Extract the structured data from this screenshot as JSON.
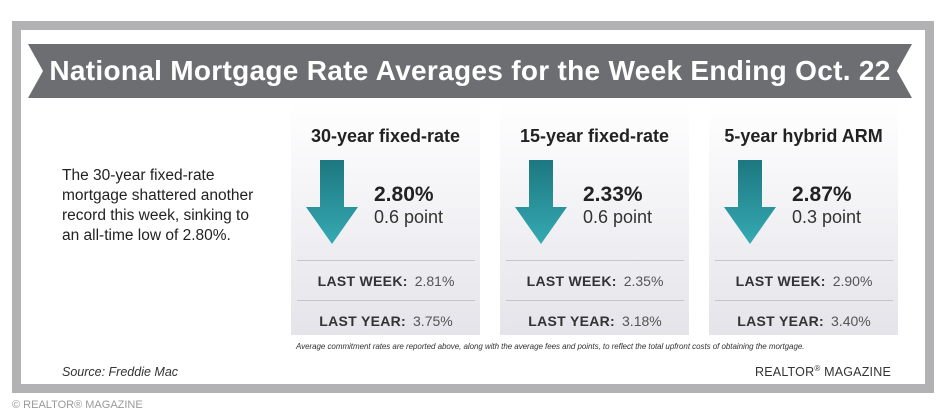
{
  "header": {
    "title": "National Mortgage Rate Averages for the Week Ending Oct. 22"
  },
  "summary": {
    "text": "The 30-year fixed-rate mortgage shattered another record this week, sinking to an all-time low of 2.80%."
  },
  "cards": [
    {
      "title": "30-year fixed-rate",
      "rate": "2.80%",
      "points": "0.6 point",
      "last_week_label": "LAST WEEK:",
      "last_week_value": "2.81%",
      "last_year_label": "LAST YEAR:",
      "last_year_value": "3.75%"
    },
    {
      "title": "15-year fixed-rate",
      "rate": "2.33%",
      "points": "0.6 point",
      "last_week_label": "LAST WEEK:",
      "last_week_value": "2.35%",
      "last_year_label": "LAST YEAR:",
      "last_year_value": "3.18%"
    },
    {
      "title": "5-year hybrid ARM",
      "rate": "2.87%",
      "points": "0.3 point",
      "last_week_label": "LAST WEEK:",
      "last_week_value": "2.90%",
      "last_year_label": "LAST YEAR:",
      "last_year_value": "3.40%"
    }
  ],
  "footnote": "Average commitment rates are reported above, along with the average fees and points, to reflect the total upfront costs of obtaining the mortgage.",
  "source": "Source: Freddie Mac",
  "brand": {
    "name": "REALTOR",
    "reg": "®",
    "suffix": " MAGAZINE"
  },
  "copyright": "© REALTOR® MAGAZINE",
  "colors": {
    "banner": "#6d6e71",
    "frame": "#b2b2b4",
    "arrow_top": "#1d7780",
    "arrow_bottom": "#35aab3"
  },
  "icons": {
    "rate_change": "down-arrow-icon"
  }
}
